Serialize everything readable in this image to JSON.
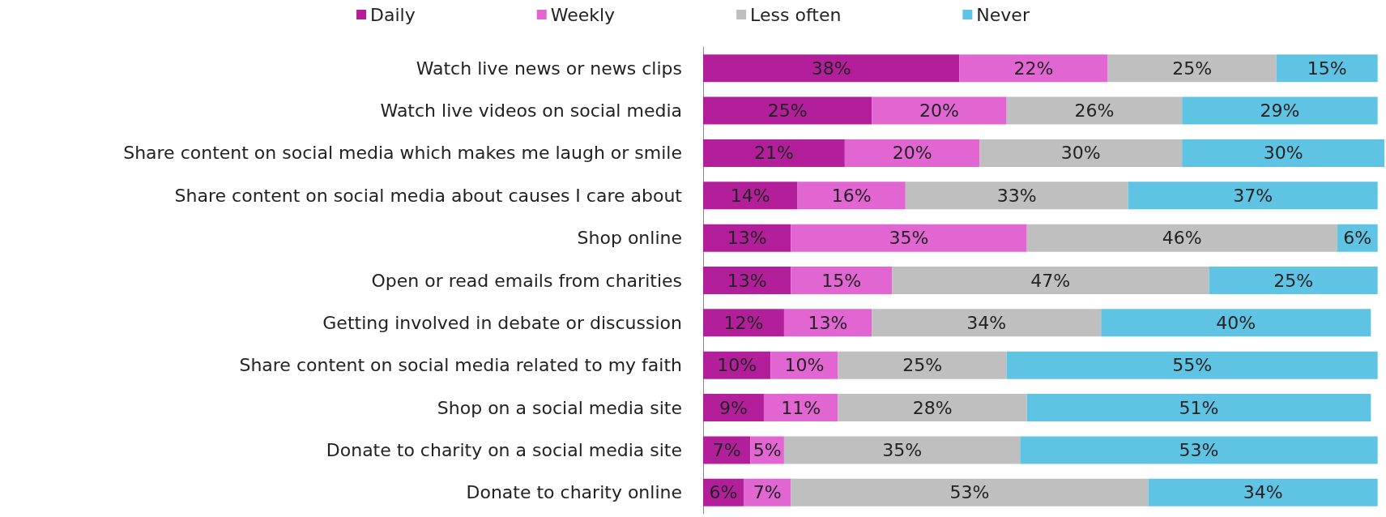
{
  "chart_data": {
    "type": "bar",
    "orientation": "horizontal",
    "stacked": true,
    "legend": "top",
    "categories": [
      "Watch live news or news clips",
      "Watch live videos on social media",
      "Share content on social media which makes me laugh or smile",
      "Share content on social media about causes I care about",
      "Shop online",
      "Open or read emails from charities",
      "Getting involved in debate or discussion",
      "Share content on social media related to my faith",
      "Shop on a social media site",
      "Donate to charity on a social media site",
      "Donate to charity online"
    ],
    "series": [
      {
        "name": "Daily",
        "color": "#b31f9a",
        "values": [
          38,
          25,
          21,
          14,
          13,
          13,
          12,
          10,
          9,
          7,
          6
        ],
        "value_labels": [
          "38%",
          "25%",
          "21%",
          "14%",
          "13%",
          "13%",
          "12%",
          "10%",
          "9%",
          "7%",
          "6%"
        ]
      },
      {
        "name": "Weekly",
        "color": "#e266d2",
        "values": [
          22,
          20,
          20,
          16,
          35,
          15,
          13,
          10,
          11,
          5,
          7
        ],
        "value_labels": [
          "22%",
          "20%",
          "20%",
          "16%",
          "35%",
          "15%",
          "13%",
          "10%",
          "11%",
          "5%",
          "7%"
        ]
      },
      {
        "name": "Less often",
        "color": "#bfbfbf",
        "values": [
          25,
          26,
          30,
          33,
          46,
          47,
          34,
          25,
          28,
          35,
          53
        ],
        "value_labels": [
          "25%",
          "26%",
          "30%",
          "33%",
          "46%",
          "47%",
          "34%",
          "25%",
          "28%",
          "35%",
          "53%"
        ]
      },
      {
        "name": "Never",
        "color": "#5fc3e4",
        "values": [
          15,
          29,
          30,
          37,
          6,
          25,
          40,
          55,
          51,
          53,
          34
        ],
        "value_labels": [
          "15%",
          "29%",
          "30%",
          "37%",
          "6%",
          "25%",
          "40%",
          "55%",
          "51%",
          "53%",
          "34%"
        ]
      }
    ]
  }
}
